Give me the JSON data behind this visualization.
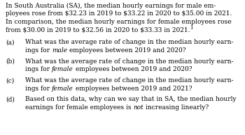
{
  "background_color": "#ffffff",
  "text_color": "#000000",
  "font_family": "DejaVu Serif",
  "body_fontsize": 6.5,
  "para_lines": [
    "In South Australia (SA), the median hourly earnings for male em-",
    "ployees rose from $32.23 in 2019 to $33.22 in 2020 to $35.00 in 2021.",
    "In comparison, the median hourly earnings for female employees rose",
    "from $30.00 in 2019 to $32.56 in 2020 to $33.33 in 2021."
  ],
  "items": [
    {
      "label": "(a)",
      "line1": "What was the average rate of change in the median hourly earn-",
      "line2_prefix": "ings for ",
      "line2_italic": "male",
      "line2_suffix": " employees between 2019 and 2020?"
    },
    {
      "label": "(b)",
      "line1": "What was the average rate of change in the median hourly earn-",
      "line2_prefix": "ings for ",
      "line2_italic": "female",
      "line2_suffix": " employees between 2019 and 2020?"
    },
    {
      "label": "(c)",
      "line1": "What was the average rate of change in the median hourly earn-",
      "line2_prefix": "ings for ",
      "line2_italic": "female",
      "line2_suffix": " employees between 2019 and 2021?"
    },
    {
      "label": "(d)",
      "line1": "Based on this data, why can we say that in SA, the median hourly",
      "line2_prefix": "earnings for female employees is ",
      "line2_italic": "not",
      "line2_suffix": " increasing linearly?"
    }
  ]
}
